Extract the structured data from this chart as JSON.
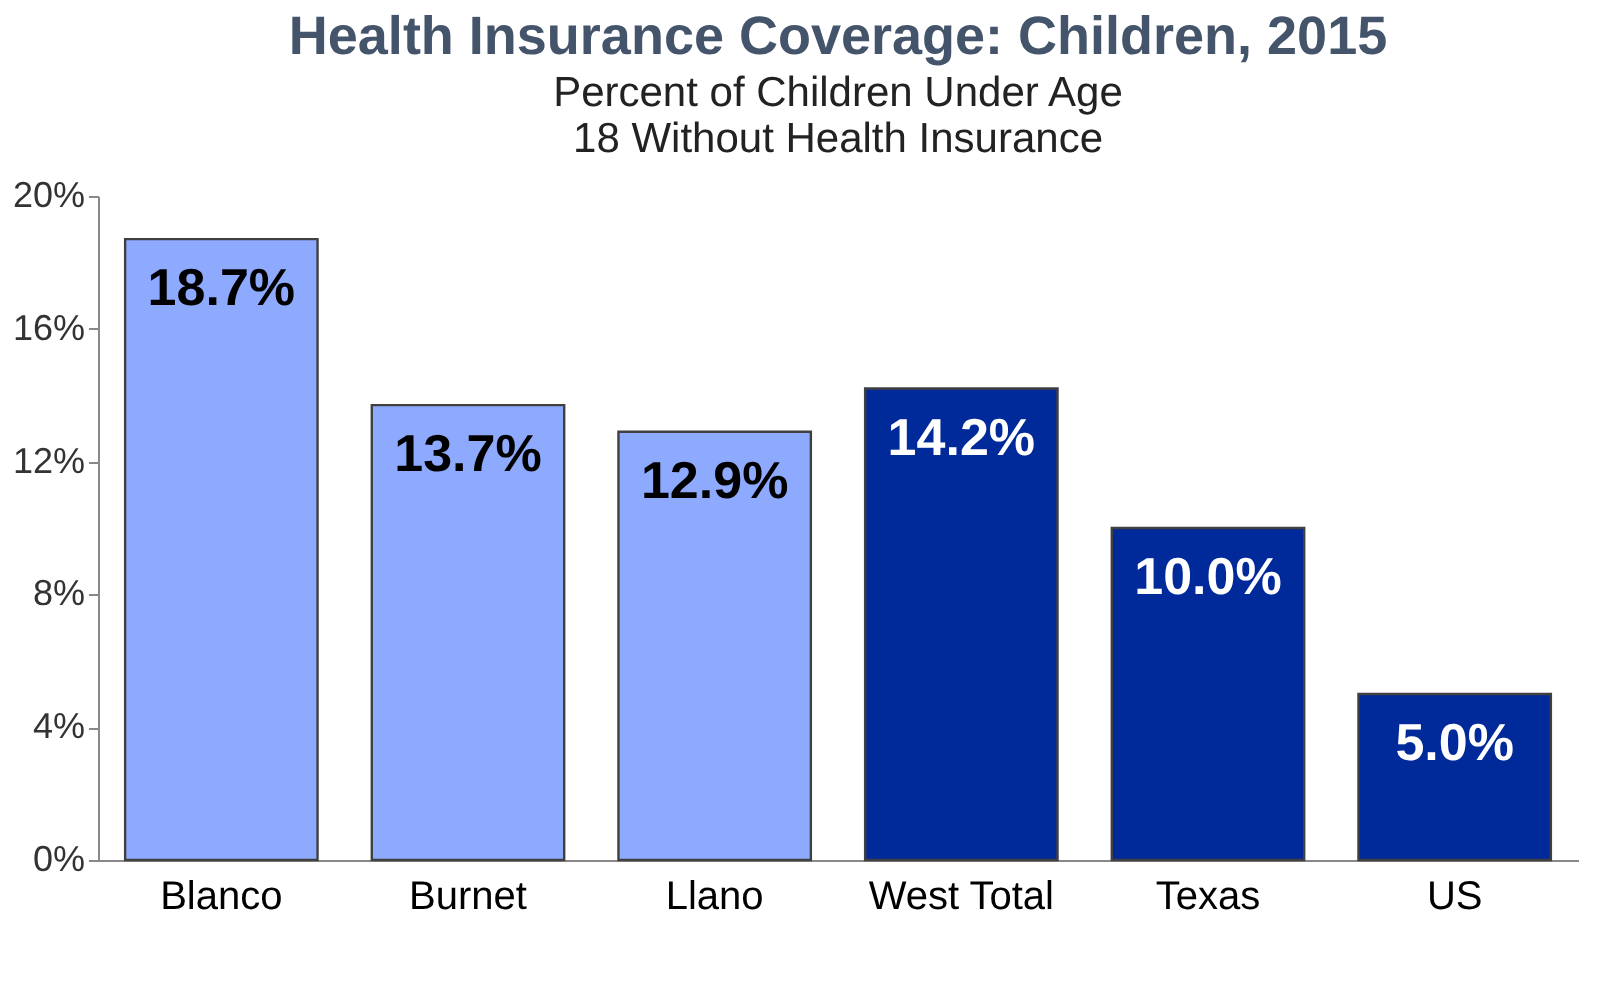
{
  "chart_data": {
    "type": "bar",
    "title": "Health Insurance Coverage: Children, 2015",
    "subtitle": "Percent of Children Under Age 18 Without Health Insurance",
    "categories": [
      "Blanco",
      "Burnet",
      "Llano",
      "West Total",
      "Texas",
      "US"
    ],
    "values": [
      18.7,
      13.7,
      12.9,
      14.2,
      10.0,
      5.0
    ],
    "colors": [
      "#8eaaff",
      "#8eaaff",
      "#8eaaff",
      "#00299a",
      "#00299a",
      "#00299a"
    ],
    "value_labels": [
      "18.7%",
      "13.7%",
      "12.9%",
      "14.2%",
      "10.0%",
      "5.0%"
    ],
    "ylim": [
      0,
      20
    ],
    "yticks": [
      {
        "value": 0,
        "label": "0%"
      },
      {
        "value": 4,
        "label": "4%"
      },
      {
        "value": 8,
        "label": "8%"
      },
      {
        "value": 12,
        "label": "12%"
      },
      {
        "value": 16,
        "label": "16%"
      },
      {
        "value": 20,
        "label": "20%"
      }
    ],
    "grid": false
  }
}
